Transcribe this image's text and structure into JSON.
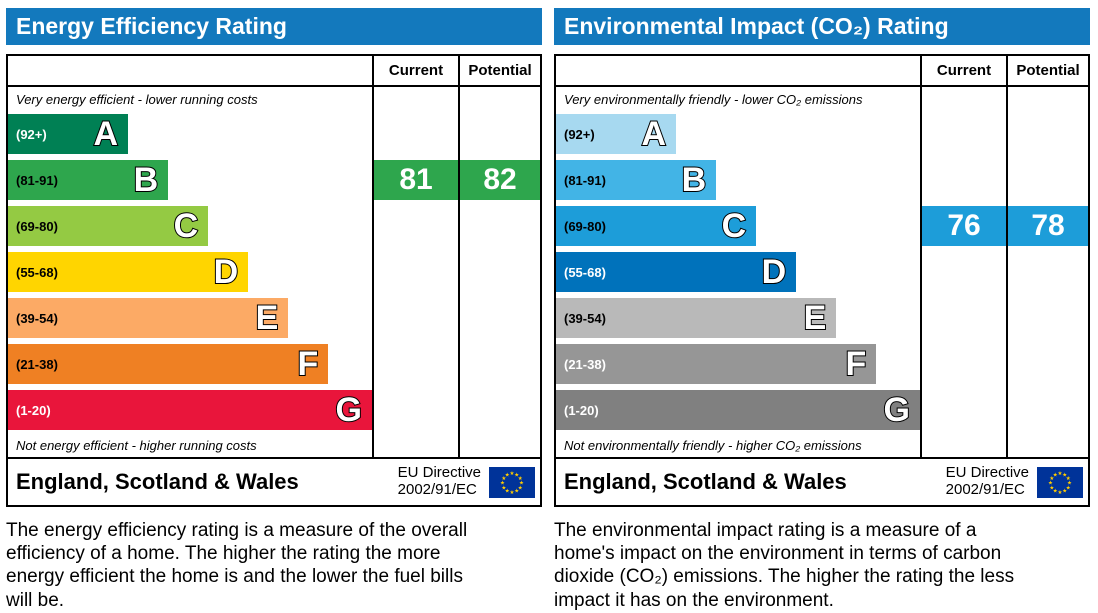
{
  "chart_data": [
    {
      "type": "bar",
      "title": "Energy Efficiency Rating",
      "categories": [
        "A (92+)",
        "B (81-91)",
        "C (69-80)",
        "D (55-68)",
        "E (39-54)",
        "F (21-38)",
        "G (1-20)"
      ],
      "values": [
        33,
        44,
        55,
        66,
        77,
        88,
        100
      ],
      "current": 81,
      "potential": 82,
      "current_band": "B",
      "potential_band": "B",
      "top_note": "Very energy efficient - lower running costs",
      "bottom_note": "Not energy efficient - higher running costs"
    },
    {
      "type": "bar",
      "title": "Environmental Impact (CO₂) Rating",
      "categories": [
        "A (92+)",
        "B (81-91)",
        "C (69-80)",
        "D (55-68)",
        "E (39-54)",
        "F (21-38)",
        "G (1-20)"
      ],
      "values": [
        33,
        44,
        55,
        66,
        77,
        88,
        100
      ],
      "current": 76,
      "potential": 78,
      "current_band": "C",
      "potential_band": "C",
      "top_note": "Very environmentally friendly - lower CO₂ emissions",
      "bottom_note": "Not environmentally friendly - higher CO₂ emissions"
    }
  ],
  "panels": [
    {
      "title": "Energy Efficiency Rating",
      "header_color": "#1379bd",
      "columns": [
        "Current",
        "Potential"
      ],
      "top_note": "Very energy efficient - lower running costs",
      "bottom_note": "Not energy efficient - higher running costs",
      "bands": [
        {
          "letter": "A",
          "range": "(92+)",
          "color": "#008054",
          "range_color": "#ffffff",
          "width_pct": 33
        },
        {
          "letter": "B",
          "range": "(81-91)",
          "color": "#2ea64d",
          "range_color": "#000000",
          "width_pct": 44
        },
        {
          "letter": "C",
          "range": "(69-80)",
          "color": "#94ca43",
          "range_color": "#000000",
          "width_pct": 55
        },
        {
          "letter": "D",
          "range": "(55-68)",
          "color": "#ffd500",
          "range_color": "#000000",
          "width_pct": 66
        },
        {
          "letter": "E",
          "range": "(39-54)",
          "color": "#fcaa65",
          "range_color": "#000000",
          "width_pct": 77
        },
        {
          "letter": "F",
          "range": "(21-38)",
          "color": "#ef8023",
          "range_color": "#000000",
          "width_pct": 88
        },
        {
          "letter": "G",
          "range": "(1-20)",
          "color": "#e9153b",
          "range_color": "#ffffff",
          "width_pct": 100
        }
      ],
      "current": {
        "value": "81",
        "band_index": 1,
        "color": "#2ea64d"
      },
      "potential": {
        "value": "82",
        "band_index": 1,
        "color": "#2ea64d"
      },
      "footer": {
        "region": "England, Scotland & Wales",
        "directive_line1": "EU Directive",
        "directive_line2": "2002/91/EC",
        "flag_icon": "eu-flag-icon",
        "flag_blue": "#003399",
        "flag_star": "#ffcc00"
      },
      "description": "The energy efficiency rating is a measure of the overall efficiency of a home. The higher the rating the more energy efficient the home is and the lower the fuel bills will be."
    },
    {
      "title": "Environmental Impact (CO₂) Rating",
      "header_color": "#1379bd",
      "columns": [
        "Current",
        "Potential"
      ],
      "top_note": "Very environmentally friendly - lower CO₂ emissions",
      "bottom_note": "Not environmentally friendly - higher CO₂ emissions",
      "bands": [
        {
          "letter": "A",
          "range": "(92+)",
          "color": "#a7d9f0",
          "range_color": "#000000",
          "width_pct": 33
        },
        {
          "letter": "B",
          "range": "(81-91)",
          "color": "#42b4e6",
          "range_color": "#000000",
          "width_pct": 44
        },
        {
          "letter": "C",
          "range": "(69-80)",
          "color": "#1d9dd9",
          "range_color": "#000000",
          "width_pct": 55
        },
        {
          "letter": "D",
          "range": "(55-68)",
          "color": "#0072bb",
          "range_color": "#ffffff",
          "width_pct": 66
        },
        {
          "letter": "E",
          "range": "(39-54)",
          "color": "#b9b9b9",
          "range_color": "#000000",
          "width_pct": 77
        },
        {
          "letter": "F",
          "range": "(21-38)",
          "color": "#969696",
          "range_color": "#ffffff",
          "width_pct": 88
        },
        {
          "letter": "G",
          "range": "(1-20)",
          "color": "#808080",
          "range_color": "#ffffff",
          "width_pct": 100
        }
      ],
      "current": {
        "value": "76",
        "band_index": 2,
        "color": "#1d9dd9"
      },
      "potential": {
        "value": "78",
        "band_index": 2,
        "color": "#1d9dd9"
      },
      "footer": {
        "region": "England, Scotland & Wales",
        "directive_line1": "EU Directive",
        "directive_line2": "2002/91/EC",
        "flag_icon": "eu-flag-icon",
        "flag_blue": "#003399",
        "flag_star": "#ffcc00"
      },
      "description": "The environmental impact rating is a measure of a home's impact on the environment in terms of carbon dioxide (CO₂) emissions. The higher the rating the less impact it has on the environment."
    }
  ]
}
